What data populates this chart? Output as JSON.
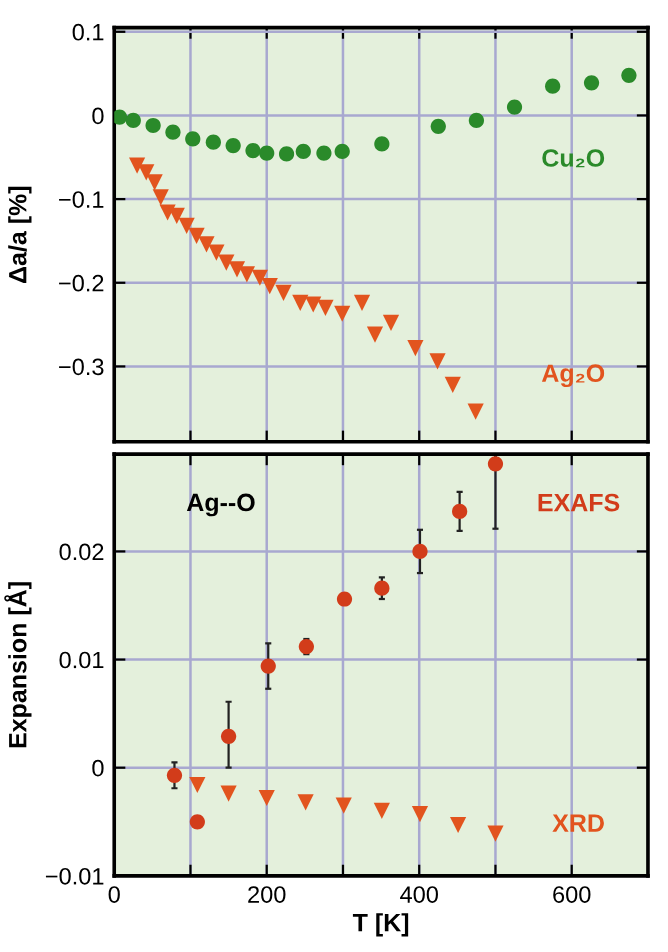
{
  "chart_data": [
    {
      "type": "scatter",
      "ylabel": "Δa/a [%]",
      "xlim": [
        0,
        700
      ],
      "xticks": [
        0,
        100,
        200,
        300,
        400,
        500,
        600
      ],
      "ylim": [
        -0.39,
        0.105
      ],
      "yticks": [
        {
          "value": 0.1,
          "label": "0.1"
        },
        {
          "value": 0,
          "label": "0"
        },
        {
          "value": -0.1,
          "label": "−0.1"
        },
        {
          "value": -0.2,
          "label": "−0.2"
        },
        {
          "value": -0.3,
          "label": "−0.3"
        }
      ],
      "grid": true,
      "tick_labels": "y",
      "legend": false,
      "series": [
        {
          "name": "Cu₂O",
          "color": "#2a8a2a",
          "marker": "circle",
          "x": [
            7,
            25,
            51,
            77,
            103,
            130,
            156,
            182,
            200,
            226,
            248,
            275,
            299,
            351,
            425,
            475,
            525,
            575,
            626,
            675
          ],
          "values": [
            -0.002,
            -0.006,
            -0.012,
            -0.02,
            -0.028,
            -0.032,
            -0.036,
            -0.042,
            -0.045,
            -0.046,
            -0.043,
            -0.045,
            -0.043,
            -0.034,
            -0.013,
            -0.006,
            0.01,
            0.035,
            0.039,
            0.048
          ]
        },
        {
          "name": "Ag₂O",
          "color": "#e2541e",
          "marker": "triangle",
          "x": [
            30,
            42,
            53,
            61,
            70,
            82,
            95,
            108,
            121,
            134,
            147,
            161,
            174,
            191,
            204,
            222,
            244,
            261,
            277,
            299,
            325,
            342,
            363,
            395,
            424,
            444,
            474
          ],
          "values": [
            -0.06,
            -0.068,
            -0.08,
            -0.098,
            -0.116,
            -0.12,
            -0.132,
            -0.144,
            -0.154,
            -0.164,
            -0.176,
            -0.184,
            -0.19,
            -0.194,
            -0.204,
            -0.212,
            -0.224,
            -0.226,
            -0.23,
            -0.237,
            -0.224,
            -0.262,
            -0.248,
            -0.278,
            -0.294,
            -0.322,
            -0.354
          ]
        }
      ]
    },
    {
      "type": "scatter",
      "xlabel": "T [K]",
      "ylabel": "Expansion [Å]",
      "xlim": [
        0,
        700
      ],
      "xticks": [
        {
          "value": 0,
          "label": "0"
        },
        {
          "value": 100,
          "label": null
        },
        {
          "value": 200,
          "label": "200"
        },
        {
          "value": 300,
          "label": null
        },
        {
          "value": 400,
          "label": "400"
        },
        {
          "value": 500,
          "label": null
        },
        {
          "value": 600,
          "label": "600"
        }
      ],
      "ylim": [
        -0.01,
        0.029
      ],
      "yticks": [
        {
          "value": -0.01,
          "label": "−0.01"
        },
        {
          "value": 0,
          "label": "0"
        },
        {
          "value": 0.01,
          "label": "0.01"
        },
        {
          "value": 0.02,
          "label": "0.02"
        }
      ],
      "grid": true,
      "legend": false,
      "annotations": [
        "Ag--O"
      ],
      "series": [
        {
          "name": "EXAFS",
          "color": "#d23c1a",
          "marker": "circle",
          "x": [
            79,
            109,
            150,
            202,
            252,
            302,
            351,
            401,
            453,
            500
          ],
          "values": [
            -0.0007,
            -0.005,
            0.0029,
            0.0094,
            0.0112,
            0.0156,
            0.0166,
            0.02,
            0.0237,
            0.0281
          ],
          "errors": [
            0.0012,
            null,
            [
              0.0,
              0.0061
            ],
            0.0021,
            0.0007,
            null,
            0.001,
            0.002,
            0.0018,
            [
              0.0221,
              0.029
            ]
          ]
        },
        {
          "name": "XRD",
          "color": "#e2541e",
          "marker": "triangle",
          "x": [
            109,
            150,
            200,
            251,
            301,
            351,
            401,
            451,
            500
          ],
          "values": [
            -0.0016,
            -0.0024,
            -0.0028,
            -0.0032,
            -0.0035,
            -0.004,
            -0.0043,
            -0.0053,
            -0.0061
          ]
        }
      ]
    }
  ]
}
